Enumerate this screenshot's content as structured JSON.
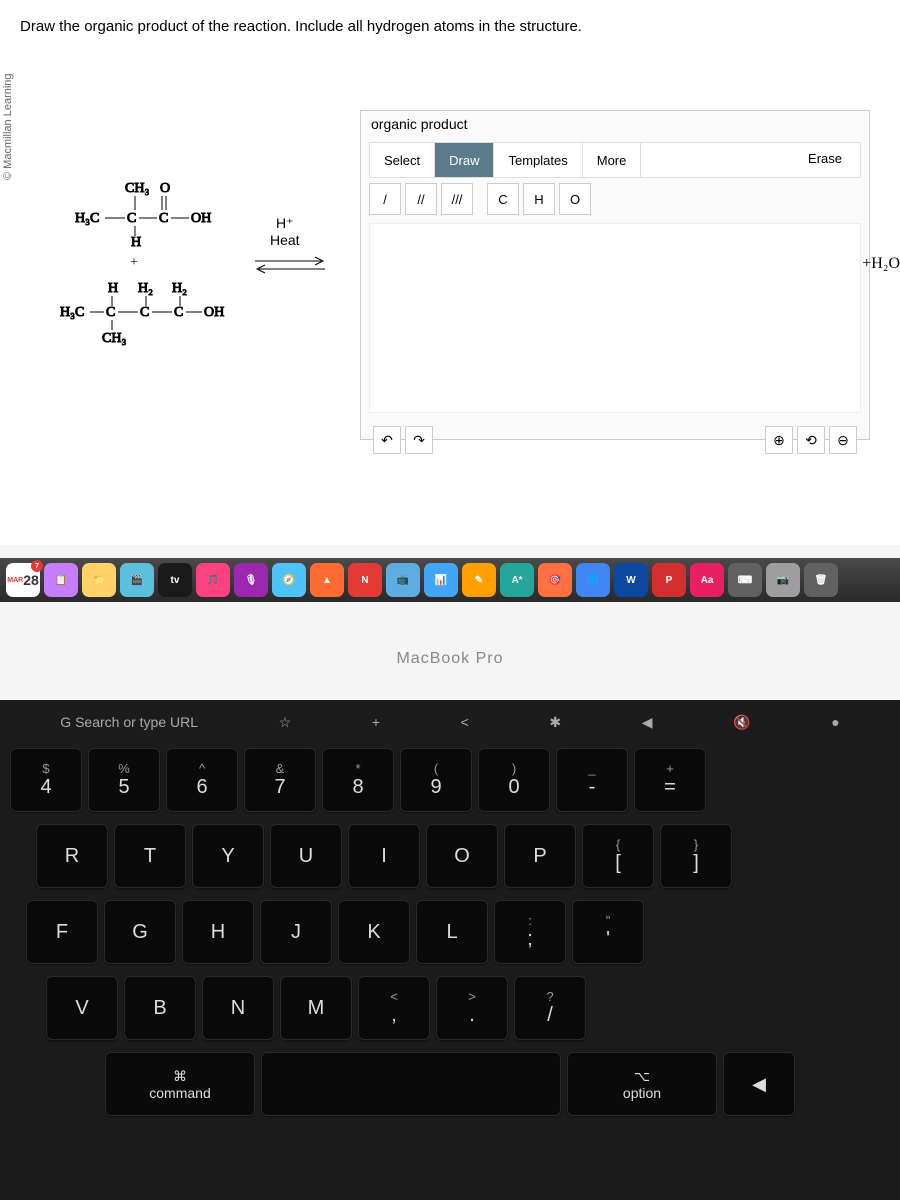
{
  "copyright": "© Macmillan Learning",
  "question": "Draw the organic product of the reaction. Include all hydrogen atoms in the structure.",
  "reactant1_ch3": "CH₃",
  "reactant1_o": "O",
  "reactant1_main": "H₃C—C—C—OH",
  "reactant1_h": "H",
  "plus": "+",
  "reactant2_top": "H    H₂   H₂",
  "reactant2_main": "H₃C—C—C —C—OH",
  "reactant2_ch3": "CH₃",
  "catalyst_h": "H⁺",
  "catalyst_heat": "Heat",
  "byproduct": "+H₂O",
  "editor": {
    "title": "organic product",
    "tabs": {
      "select": "Select",
      "draw": "Draw",
      "templates": "Templates",
      "more": "More"
    },
    "erase": "Erase",
    "bond1": "/",
    "bond2": "//",
    "bond3": "///",
    "elem_c": "C",
    "elem_h": "H",
    "elem_o": "O",
    "undo": "↶",
    "redo": "↷",
    "zoomin": "⊕",
    "reset": "⟲",
    "zoomout": "⊖"
  },
  "dock": {
    "calendar_badge": "7",
    "calendar_day": "28",
    "apps": [
      "📅",
      "📋",
      "📁",
      "🎬",
      "tv",
      "🎵",
      "🎙",
      "🧭",
      "▲",
      "N",
      "📺",
      "📊",
      "✎",
      "A*",
      "🎯",
      "🌐",
      "W",
      "P",
      "Aa",
      "⌨",
      "📷",
      "🗑"
    ]
  },
  "laptop": "MacBook Pro",
  "fn_row": [
    "G Search or type URL",
    "☆",
    "+",
    "<",
    "✱",
    "◀︎",
    "🔇",
    "●"
  ],
  "keys_r1": [
    {
      "u": "$",
      "l": "4"
    },
    {
      "u": "%",
      "l": "5"
    },
    {
      "u": "^",
      "l": "6"
    },
    {
      "u": "&",
      "l": "7"
    },
    {
      "u": "*",
      "l": "8"
    },
    {
      "u": "(",
      "l": "9"
    },
    {
      "u": ")",
      "l": "0"
    },
    {
      "u": "_",
      "l": "-"
    },
    {
      "u": "+",
      "l": "="
    }
  ],
  "keys_r2": [
    "R",
    "T",
    "Y",
    "U",
    "I",
    "O",
    "P",
    {
      "u": "{",
      "l": "["
    },
    {
      "u": "}",
      "l": "]"
    }
  ],
  "keys_r3": [
    "F",
    "G",
    "H",
    "J",
    "K",
    "L",
    {
      "u": ":",
      "l": ";"
    },
    {
      "u": "\"",
      "l": "'"
    }
  ],
  "keys_r4": [
    "V",
    "B",
    "N",
    "M",
    {
      "u": "<",
      "l": ","
    },
    {
      "u": ">",
      "l": "."
    },
    {
      "u": "?",
      "l": "/"
    }
  ],
  "bottom": {
    "cmd_icon": "⌘",
    "command": "command",
    "opt_icon": "⌥",
    "option": "option"
  },
  "colors": {
    "dock_icons": [
      "#ffffff",
      "#c77dff",
      "#ffd166",
      "#5bc0de",
      "#1a1a1a",
      "#ff4081",
      "#9c27b0",
      "#4fc3f7",
      "#ff6b35",
      "#e53935",
      "#5dade2",
      "#42a5f5",
      "#ffa000",
      "#26a69a",
      "#ff7043",
      "#4285f4",
      "#0d47a1",
      "#d32f2f",
      "#e91e63",
      "#616161",
      "#9e9e9e",
      "#616161"
    ]
  }
}
